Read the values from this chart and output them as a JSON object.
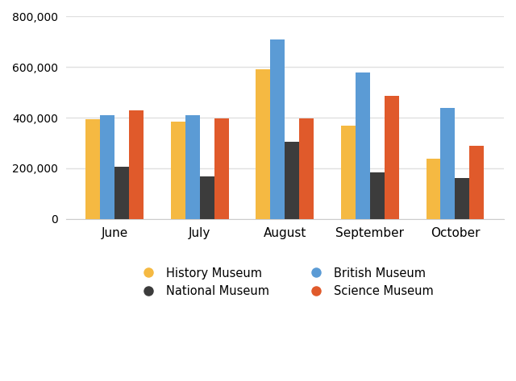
{
  "months": [
    "June",
    "July",
    "August",
    "September",
    "October"
  ],
  "museums": [
    "History Museum",
    "British Museum",
    "National Museum",
    "Science Museum"
  ],
  "colors": [
    "#F5B942",
    "#5B9BD5",
    "#3C3C3C",
    "#E05A2B"
  ],
  "values": {
    "History Museum": [
      395000,
      385000,
      590000,
      370000,
      238000
    ],
    "British Museum": [
      410000,
      410000,
      710000,
      578000,
      438000
    ],
    "National Museum": [
      205000,
      168000,
      305000,
      185000,
      162000
    ],
    "Science Museum": [
      430000,
      398000,
      398000,
      488000,
      288000
    ]
  },
  "ylim": [
    0,
    800000
  ],
  "yticks": [
    0,
    200000,
    400000,
    600000,
    800000
  ],
  "background_color": "#ffffff",
  "grid_color": "#e0e0e0",
  "bar_width": 0.17,
  "legend_order": [
    0,
    2,
    1,
    3
  ],
  "legend_ncol": 2,
  "figsize": [
    6.4,
    4.73
  ],
  "dpi": 100
}
